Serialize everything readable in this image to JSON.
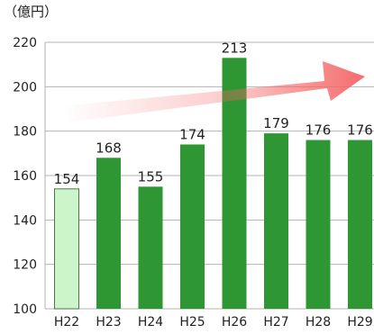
{
  "chart_data": {
    "type": "bar",
    "unit": "（億円）",
    "title": "",
    "xlabel": "",
    "ylabel": "",
    "categories": [
      "H22",
      "H23",
      "H24",
      "H25",
      "H26",
      "H27",
      "H28",
      "H29"
    ],
    "values": [
      154,
      168,
      155,
      174,
      213,
      179,
      176,
      176
    ],
    "data_labels": [
      "154",
      "168",
      "155",
      "174",
      "213",
      "179",
      "176",
      "176"
    ],
    "ylim": [
      100,
      220
    ],
    "yticks": [
      100,
      120,
      140,
      160,
      180,
      200,
      220
    ],
    "grid": true,
    "colors": {
      "bar": "#2e9632",
      "bar_first": "#ccf5cc",
      "bar_outline": "#4a7a3a",
      "grid": "#b3b3b3",
      "arrow": "#f46464"
    },
    "highlighted_first_bar": true,
    "trend_arrow": "increasing"
  }
}
